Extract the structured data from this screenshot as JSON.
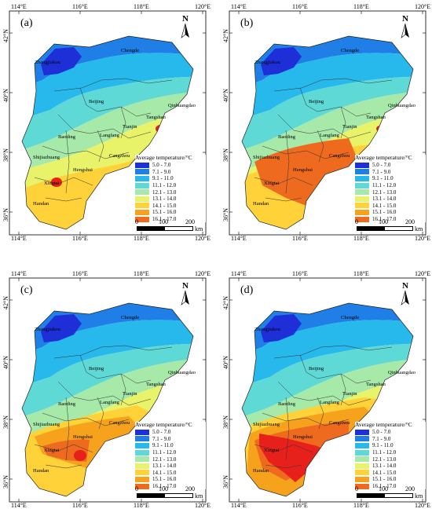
{
  "panels": [
    {
      "label": "(a)",
      "variant": "a"
    },
    {
      "label": "(b)",
      "variant": "b"
    },
    {
      "label": "(c)",
      "variant": "c"
    },
    {
      "label": "(d)",
      "variant": "d"
    }
  ],
  "axes": {
    "lon_ticks": [
      "114°E",
      "116°E",
      "118°E",
      "120°E"
    ],
    "lat_ticks": [
      "42°N",
      "40°N",
      "38°N",
      "36°N"
    ]
  },
  "north_label": "N",
  "cities": [
    "Chengde",
    "Zhangjiakou",
    "Beijing",
    "Qinhuangdao",
    "Tangshan",
    "Tianjin",
    "Langfang",
    "Baoding",
    "Cangzhou",
    "Shijiazhuang",
    "Hengshui",
    "Xingtai",
    "Handan"
  ],
  "legend": {
    "title": "Average temperature/°C",
    "classes": [
      {
        "label": "5.0 - 7.0",
        "color": "#1f2fd8"
      },
      {
        "label": "7.1 - 9.0",
        "color": "#1f7fe6"
      },
      {
        "label": "9.1 - 11.0",
        "color": "#27b8ec"
      },
      {
        "label": "11.1 - 12.0",
        "color": "#5fd9d6"
      },
      {
        "label": "12.1 - 13.0",
        "color": "#a6e9a8"
      },
      {
        "label": "13.1 - 14.0",
        "color": "#e8f36a"
      },
      {
        "label": "14.1 - 15.0",
        "color": "#ffd23a"
      },
      {
        "label": "15.1 - 16.0",
        "color": "#f6a21c"
      },
      {
        "label": "16.1 - 17.0",
        "color": "#ee6a1f"
      }
    ]
  },
  "scale_bar": {
    "ticks": [
      "0",
      "100",
      "200"
    ],
    "unit": "km"
  },
  "hotspot_color": "#e8201b"
}
